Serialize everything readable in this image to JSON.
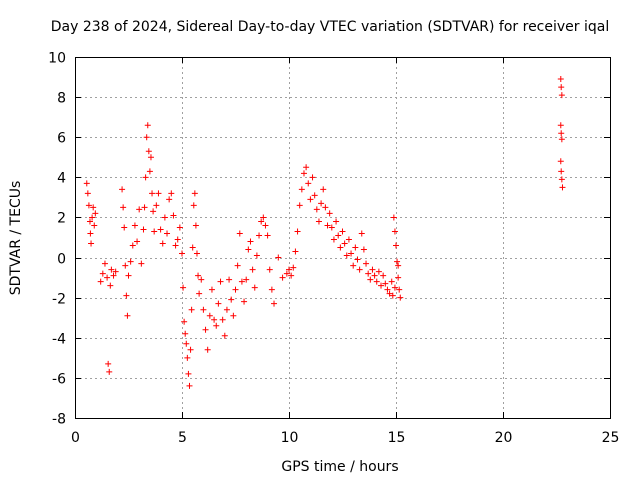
{
  "chart_data": {
    "type": "scatter",
    "title": "Day 238 of 2024, Sidereal Day-to-day VTEC variation (SDTVAR) for receiver iqal",
    "xlabel": "GPS time / hours",
    "ylabel": "SDTVAR / TECUs",
    "xlim": [
      0,
      25
    ],
    "ylim": [
      -8,
      10
    ],
    "xticks": [
      0,
      5,
      10,
      15,
      20,
      25
    ],
    "yticks": [
      -8,
      -6,
      -4,
      -2,
      0,
      2,
      4,
      6,
      8,
      10
    ],
    "grid": true,
    "marker": "+",
    "color": "#ff0000",
    "series": [
      {
        "name": "SDTVAR",
        "points": [
          [
            0.55,
            3.7
          ],
          [
            0.6,
            3.2
          ],
          [
            0.65,
            2.6
          ],
          [
            0.7,
            1.8
          ],
          [
            0.72,
            1.2
          ],
          [
            0.75,
            0.7
          ],
          [
            0.8,
            2.0
          ],
          [
            0.85,
            2.5
          ],
          [
            0.9,
            1.6
          ],
          [
            0.95,
            2.2
          ],
          [
            1.2,
            -1.2
          ],
          [
            1.3,
            -0.8
          ],
          [
            1.4,
            -0.3
          ],
          [
            1.5,
            -1.0
          ],
          [
            1.55,
            -5.3
          ],
          [
            1.6,
            -5.7
          ],
          [
            1.65,
            -1.4
          ],
          [
            1.7,
            -0.6
          ],
          [
            1.8,
            -0.9
          ],
          [
            1.9,
            -0.7
          ],
          [
            2.2,
            3.4
          ],
          [
            2.25,
            2.5
          ],
          [
            2.3,
            1.5
          ],
          [
            2.35,
            -0.4
          ],
          [
            2.4,
            -1.9
          ],
          [
            2.45,
            -2.9
          ],
          [
            2.5,
            -0.9
          ],
          [
            2.6,
            -0.2
          ],
          [
            2.7,
            0.6
          ],
          [
            2.8,
            1.6
          ],
          [
            2.9,
            0.8
          ],
          [
            3.0,
            2.4
          ],
          [
            3.1,
            -0.3
          ],
          [
            3.2,
            1.4
          ],
          [
            3.25,
            2.5
          ],
          [
            3.3,
            4.0
          ],
          [
            3.35,
            6.0
          ],
          [
            3.4,
            6.6
          ],
          [
            3.45,
            5.3
          ],
          [
            3.5,
            4.3
          ],
          [
            3.55,
            5.0
          ],
          [
            3.6,
            3.2
          ],
          [
            3.65,
            2.3
          ],
          [
            3.7,
            1.3
          ],
          [
            3.8,
            2.6
          ],
          [
            3.9,
            3.2
          ],
          [
            4.0,
            1.4
          ],
          [
            4.1,
            0.7
          ],
          [
            4.2,
            2.0
          ],
          [
            4.3,
            1.2
          ],
          [
            4.4,
            2.9
          ],
          [
            4.5,
            3.2
          ],
          [
            4.6,
            2.1
          ],
          [
            4.7,
            0.6
          ],
          [
            4.8,
            0.9
          ],
          [
            4.9,
            1.5
          ],
          [
            5.0,
            0.2
          ],
          [
            5.05,
            -1.5
          ],
          [
            5.1,
            -3.2
          ],
          [
            5.15,
            -3.8
          ],
          [
            5.2,
            -4.3
          ],
          [
            5.25,
            -5.0
          ],
          [
            5.3,
            -5.8
          ],
          [
            5.35,
            -6.4
          ],
          [
            5.4,
            -4.6
          ],
          [
            5.45,
            -2.6
          ],
          [
            5.5,
            0.5
          ],
          [
            5.55,
            2.6
          ],
          [
            5.6,
            3.2
          ],
          [
            5.65,
            1.6
          ],
          [
            5.7,
            0.2
          ],
          [
            5.75,
            -0.9
          ],
          [
            5.8,
            -1.8
          ],
          [
            5.9,
            -1.1
          ],
          [
            6.0,
            -2.6
          ],
          [
            6.1,
            -3.6
          ],
          [
            6.2,
            -4.6
          ],
          [
            6.3,
            -2.9
          ],
          [
            6.4,
            -1.6
          ],
          [
            6.5,
            -3.1
          ],
          [
            6.6,
            -3.4
          ],
          [
            6.7,
            -2.3
          ],
          [
            6.8,
            -1.2
          ],
          [
            6.9,
            -3.1
          ],
          [
            7.0,
            -3.9
          ],
          [
            7.1,
            -2.6
          ],
          [
            7.2,
            -1.1
          ],
          [
            7.3,
            -2.1
          ],
          [
            7.4,
            -2.9
          ],
          [
            7.5,
            -1.6
          ],
          [
            7.6,
            -0.4
          ],
          [
            7.7,
            1.2
          ],
          [
            7.8,
            -1.2
          ],
          [
            7.9,
            -2.2
          ],
          [
            8.0,
            -1.1
          ],
          [
            8.1,
            0.4
          ],
          [
            8.2,
            0.8
          ],
          [
            8.3,
            -0.6
          ],
          [
            8.4,
            -1.5
          ],
          [
            8.5,
            0.1
          ],
          [
            8.6,
            1.1
          ],
          [
            8.7,
            1.8
          ],
          [
            8.8,
            2.0
          ],
          [
            8.9,
            1.6
          ],
          [
            9.0,
            1.1
          ],
          [
            9.1,
            -0.6
          ],
          [
            9.2,
            -1.6
          ],
          [
            9.3,
            -2.3
          ],
          [
            9.5,
            0.0
          ],
          [
            9.7,
            -1.0
          ],
          [
            9.9,
            -0.8
          ],
          [
            10.0,
            -0.6
          ],
          [
            10.1,
            -0.9
          ],
          [
            10.2,
            -0.5
          ],
          [
            10.3,
            0.3
          ],
          [
            10.4,
            1.3
          ],
          [
            10.5,
            2.6
          ],
          [
            10.6,
            3.4
          ],
          [
            10.7,
            4.2
          ],
          [
            10.8,
            4.5
          ],
          [
            10.9,
            3.7
          ],
          [
            11.0,
            2.9
          ],
          [
            11.1,
            4.0
          ],
          [
            11.2,
            3.1
          ],
          [
            11.3,
            2.4
          ],
          [
            11.4,
            1.8
          ],
          [
            11.5,
            2.7
          ],
          [
            11.6,
            3.4
          ],
          [
            11.7,
            2.5
          ],
          [
            11.8,
            1.6
          ],
          [
            11.9,
            2.2
          ],
          [
            12.0,
            1.5
          ],
          [
            12.1,
            0.9
          ],
          [
            12.2,
            1.8
          ],
          [
            12.3,
            1.1
          ],
          [
            12.4,
            0.5
          ],
          [
            12.5,
            1.3
          ],
          [
            12.6,
            0.7
          ],
          [
            12.7,
            0.1
          ],
          [
            12.8,
            0.9
          ],
          [
            12.9,
            0.2
          ],
          [
            13.0,
            -0.4
          ],
          [
            13.1,
            0.5
          ],
          [
            13.2,
            -0.1
          ],
          [
            13.3,
            -0.6
          ],
          [
            13.4,
            1.2
          ],
          [
            13.5,
            0.4
          ],
          [
            13.6,
            -0.3
          ],
          [
            13.7,
            -0.8
          ],
          [
            13.8,
            -1.1
          ],
          [
            13.9,
            -0.6
          ],
          [
            14.0,
            -0.9
          ],
          [
            14.1,
            -1.2
          ],
          [
            14.2,
            -0.7
          ],
          [
            14.3,
            -1.4
          ],
          [
            14.4,
            -0.9
          ],
          [
            14.5,
            -1.3
          ],
          [
            14.6,
            -1.6
          ],
          [
            14.7,
            -1.8
          ],
          [
            14.8,
            -1.2
          ],
          [
            14.85,
            -1.9
          ],
          [
            14.9,
            2.0
          ],
          [
            14.95,
            1.3
          ],
          [
            15.0,
            0.6
          ],
          [
            15.05,
            -0.2
          ],
          [
            15.1,
            -1.0
          ],
          [
            15.15,
            -1.6
          ],
          [
            15.2,
            -2.0
          ],
          [
            14.95,
            -1.5
          ],
          [
            15.1,
            -0.4
          ],
          [
            22.7,
            8.9
          ],
          [
            22.72,
            8.5
          ],
          [
            22.75,
            8.1
          ],
          [
            22.7,
            6.6
          ],
          [
            22.72,
            6.2
          ],
          [
            22.75,
            5.9
          ],
          [
            22.7,
            4.8
          ],
          [
            22.72,
            4.3
          ],
          [
            22.75,
            3.9
          ],
          [
            22.78,
            3.5
          ]
        ]
      }
    ]
  }
}
